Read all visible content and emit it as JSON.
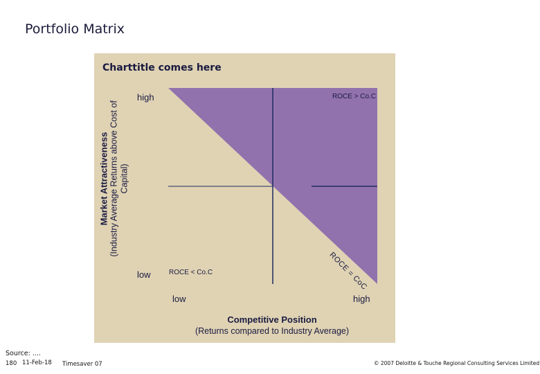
{
  "page": {
    "title": "Portfolio Matrix"
  },
  "chart": {
    "title": "Charttitle comes here",
    "y_high": "high",
    "y_low": "low",
    "x_low": "low",
    "x_high": "high",
    "y_axis_title": "Market Attractiveness",
    "y_axis_subtitle": "(Industry Average Returns above Cost of Capital)",
    "x_axis_title": "Competitive Position",
    "x_axis_subtitle": "(Returns compared to Industry Average)",
    "region_above": "ROCE > Co.C",
    "region_below": "ROCE < Co.C",
    "diagonal_label": "ROCE = CoC",
    "colors": {
      "panel": "#dfd3b4",
      "region_above": "#9272ad",
      "gridline": "#1f2a5e"
    }
  },
  "footer": {
    "source": "Source: ....",
    "page_number": "180",
    "date": "11-Feb-18",
    "template": "Timesaver 07",
    "copyright": "© 2007 Deloitte & Touche Regional Consulting Services Limited"
  }
}
